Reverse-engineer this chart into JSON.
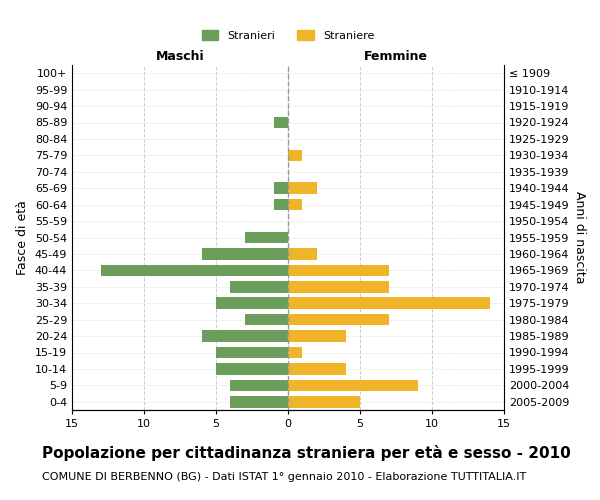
{
  "age_groups": [
    "100+",
    "95-99",
    "90-94",
    "85-89",
    "80-84",
    "75-79",
    "70-74",
    "65-69",
    "60-64",
    "55-59",
    "50-54",
    "45-49",
    "40-44",
    "35-39",
    "30-34",
    "25-29",
    "20-24",
    "15-19",
    "10-14",
    "5-9",
    "0-4"
  ],
  "birth_years": [
    "≤ 1909",
    "1910-1914",
    "1915-1919",
    "1920-1924",
    "1925-1929",
    "1930-1934",
    "1935-1939",
    "1940-1944",
    "1945-1949",
    "1950-1954",
    "1955-1959",
    "1960-1964",
    "1965-1969",
    "1970-1974",
    "1975-1979",
    "1980-1984",
    "1985-1989",
    "1990-1994",
    "1995-1999",
    "2000-2004",
    "2005-2009"
  ],
  "males": [
    0,
    0,
    0,
    1,
    0,
    0,
    0,
    1,
    1,
    0,
    3,
    6,
    13,
    4,
    5,
    3,
    6,
    5,
    5,
    4,
    4
  ],
  "females": [
    0,
    0,
    0,
    0,
    0,
    1,
    0,
    2,
    1,
    0,
    0,
    2,
    7,
    7,
    14,
    7,
    4,
    1,
    4,
    9,
    5
  ],
  "male_color": "#6a9e5a",
  "female_color": "#f0b429",
  "background_color": "#ffffff",
  "grid_color": "#cccccc",
  "title": "Popolazione per cittadinanza straniera per età e sesso - 2010",
  "subtitle": "COMUNE DI BERBENNO (BG) - Dati ISTAT 1° gennaio 2010 - Elaborazione TUTTITALIA.IT",
  "xlabel_left": "Maschi",
  "xlabel_right": "Femmine",
  "ylabel_left": "Fasce di età",
  "ylabel_right": "Anni di nascita",
  "legend_male": "Stranieri",
  "legend_female": "Straniere",
  "xlim": 15,
  "title_fontsize": 11,
  "subtitle_fontsize": 8,
  "tick_fontsize": 8,
  "label_fontsize": 9
}
